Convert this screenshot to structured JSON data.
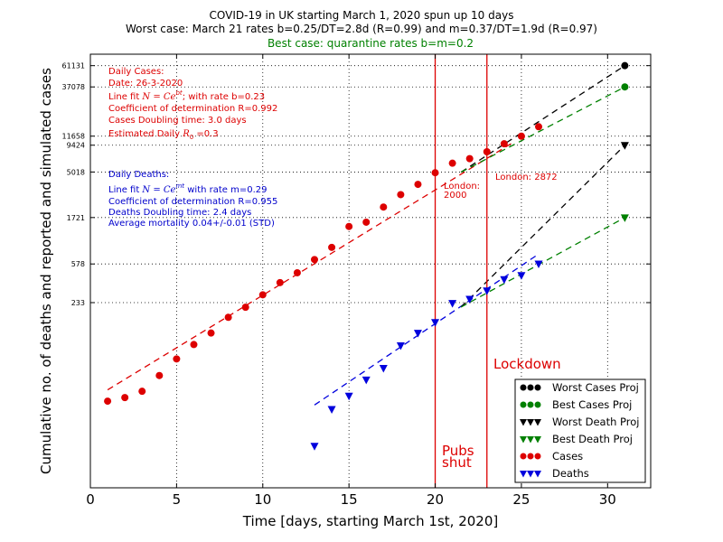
{
  "chart_data": {
    "type": "scatter",
    "title": "COVID-19 in UK starting March 1, 2020 spun up 10 days",
    "subtitle": "Worst case: March 21 rates b=0.25/DT=2.8d (R=0.99) and m=0.37/DT=1.9d (R=0.97)",
    "subtitle2": "Best case: quarantine rates b=m=0.2",
    "xlabel": "Time [days, starting March 1st, 2020]",
    "ylabel": "Cumulative no. of deaths and reported and simulated cases",
    "xlim": [
      0,
      32.5
    ],
    "ylim": [
      3,
      80000
    ],
    "yscale": "log",
    "grid": true,
    "x_ticks": [
      0,
      5,
      10,
      15,
      20,
      25,
      30
    ],
    "y_ticks": [
      233,
      578,
      1721,
      5018,
      9424,
      11658,
      37078,
      61131
    ],
    "series": [
      {
        "name": "Cases",
        "color": "#dd0000",
        "marker": "circle",
        "x": [
          1,
          2,
          3,
          4,
          5,
          6,
          7,
          8,
          9,
          10,
          11,
          12,
          13,
          14,
          15,
          16,
          17,
          18,
          19,
          20,
          21,
          22,
          23,
          24,
          25,
          26
        ],
        "y": [
          23,
          25,
          29,
          42,
          62,
          87,
          114,
          165,
          209,
          280,
          373,
          470,
          641,
          854,
          1395,
          1543,
          2202,
          2949,
          3755,
          4935,
          6171,
          6871,
          8077,
          9751,
          11650,
          14540
        ]
      },
      {
        "name": "Deaths",
        "color": "#0000dd",
        "marker": "triangle-down",
        "x": [
          13,
          14,
          15,
          16,
          17,
          18,
          19,
          20,
          21,
          22,
          23,
          24,
          25,
          26
        ],
        "y": [
          8,
          19,
          26,
          38,
          50,
          85,
          114,
          147,
          230,
          254,
          309,
          403,
          443,
          580
        ]
      },
      {
        "name": "Worst Cases Proj",
        "color": "#000000",
        "marker": "circle",
        "x": [
          31
        ],
        "y": [
          61131
        ]
      },
      {
        "name": "Best Cases Proj",
        "color": "#008000",
        "marker": "circle",
        "x": [
          31
        ],
        "y": [
          37078
        ]
      },
      {
        "name": "Worst Death Proj",
        "color": "#000000",
        "marker": "triangle-down",
        "x": [
          31
        ],
        "y": [
          9424
        ]
      },
      {
        "name": "Best Death Proj",
        "color": "#008000",
        "marker": "triangle-down",
        "x": [
          31
        ],
        "y": [
          1721
        ]
      }
    ],
    "fits": [
      {
        "color": "#dd0000",
        "x": [
          1,
          24.5
        ],
        "y": [
          30,
          10000
        ]
      },
      {
        "color": "#0000dd",
        "x": [
          13,
          26
        ],
        "y": [
          21,
          730
        ]
      },
      {
        "color": "#000000",
        "x": [
          21.5,
          31
        ],
        "y": [
          5000,
          61131
        ]
      },
      {
        "color": "#008000",
        "x": [
          21.5,
          31
        ],
        "y": [
          5000,
          37078
        ]
      },
      {
        "color": "#000000",
        "x": [
          21.5,
          31
        ],
        "y": [
          210,
          9424
        ]
      },
      {
        "color": "#008000",
        "x": [
          21.5,
          31
        ],
        "y": [
          210,
          1721
        ]
      }
    ],
    "vlines": [
      {
        "x": 20,
        "color": "#dd0000"
      },
      {
        "x": 23,
        "color": "#dd0000"
      }
    ],
    "legend": {
      "placement": "lower-right"
    }
  },
  "annotations": {
    "cases": {
      "line1": "Daily Cases:",
      "line2": "Date: 26-3-2020",
      "line3_pre": "Line fit ",
      "line3_formula": "N = Ce",
      "line3_sup": "bt",
      "line3_post": "; with rate b=0.23",
      "line4": "Coefficient of determination R=0.992",
      "line5": "Cases Doubling time: 3.0 days",
      "line6_pre": "Estimated Daily ",
      "line6_formula": "R",
      "line6_sub": "0",
      "line6_post": " =0.3"
    },
    "deaths": {
      "line1": "Daily Deaths:",
      "line2_pre": "Line fit ",
      "line2_formula": "N = Ce",
      "line2_sup": "mt",
      "line2_post": " with rate m=0.29",
      "line3": "Coefficient of determination R=0.955",
      "line4": "Deaths Doubling time: 2.4 days",
      "line5": "Average mortality 0.04+/-0.01 (STD)"
    },
    "london1_a": "London:",
    "london1_b": "2000",
    "london2": "London: 2872",
    "lockdown": "Lockdown",
    "pubs_a": "Pubs",
    "pubs_b": "shut"
  }
}
